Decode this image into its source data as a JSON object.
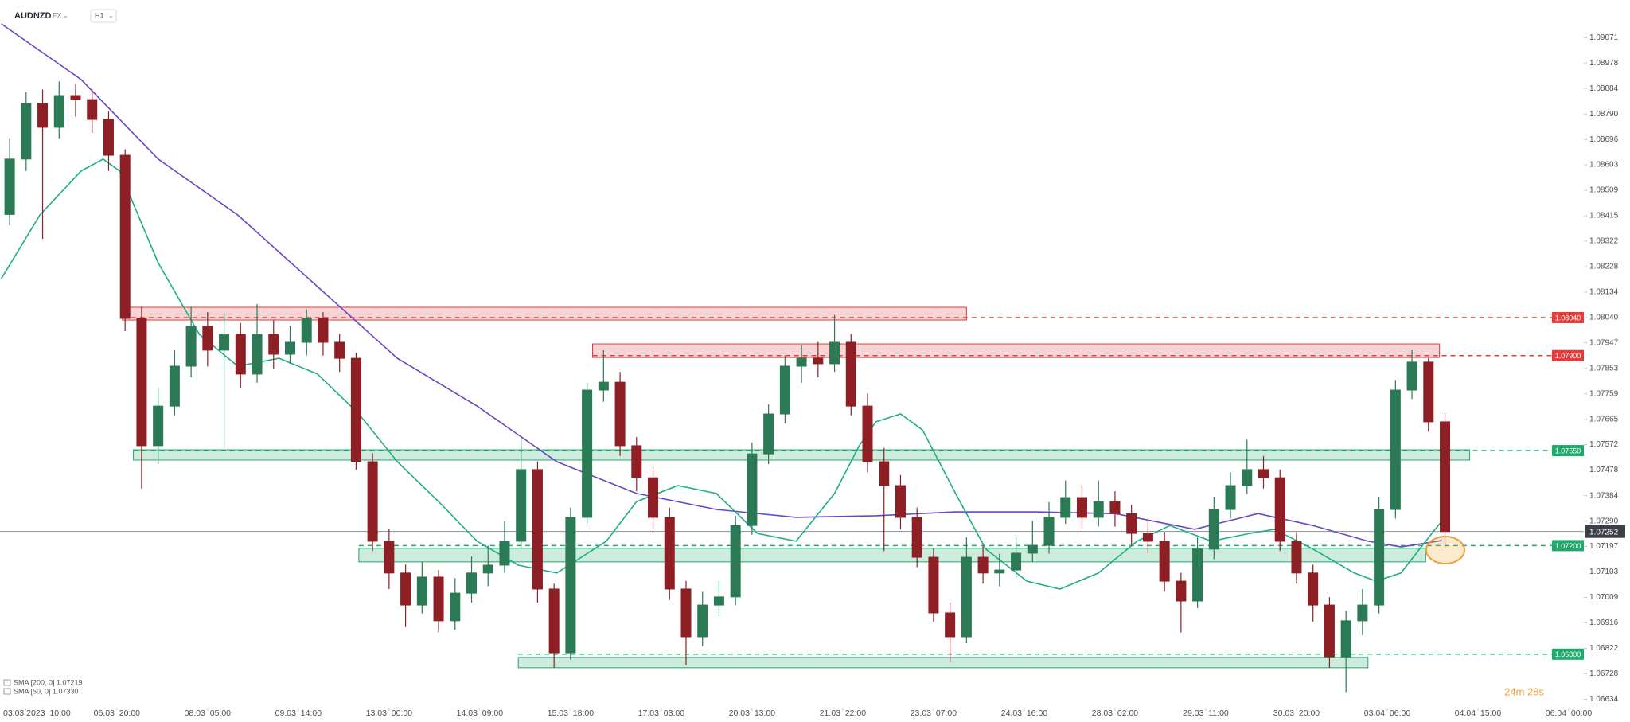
{
  "chart_data": {
    "type": "candlestick",
    "title": "AUDNZD",
    "market": "FX",
    "interval": "H1",
    "up_color": "#2b7a55",
    "down_color": "#8e1f24",
    "x": [
      -6,
      0,
      6,
      12,
      18,
      24,
      30,
      36,
      42,
      48,
      54,
      60,
      66,
      72,
      78,
      84,
      90,
      96,
      102,
      108,
      114,
      120,
      126,
      132,
      138,
      144,
      150,
      156,
      162,
      168,
      174,
      180,
      186,
      192,
      198,
      204,
      210,
      216,
      222,
      228,
      234,
      240,
      246,
      252,
      258,
      264,
      270,
      276,
      282,
      288,
      294,
      300,
      306,
      312,
      318,
      324,
      330,
      336,
      342,
      348,
      354,
      360,
      366,
      372,
      378,
      384,
      390,
      396,
      402,
      408,
      414,
      420,
      426,
      432,
      438,
      444,
      450,
      456,
      462,
      468,
      474,
      480,
      486,
      492,
      498,
      504,
      510,
      516
    ],
    "open": [
      1.0842,
      1.08624,
      1.08829,
      1.08741,
      1.08858,
      1.08843,
      1.0877,
      1.08638,
      1.08037,
      1.07568,
      1.07714,
      1.07861,
      1.08008,
      1.0792,
      1.07978,
      1.07832,
      1.07978,
      1.07905,
      1.07949,
      1.08037,
      1.07949,
      1.0789,
      1.07509,
      1.07216,
      1.07099,
      1.06981,
      1.07084,
      1.06923,
      1.07025,
      1.07099,
      1.07128,
      1.07216,
      1.0748,
      1.0704,
      1.06805,
      1.07304,
      1.07773,
      1.07802,
      1.07568,
      1.0745,
      1.07304,
      1.0704,
      1.06864,
      1.06981,
      1.07011,
      1.07274,
      1.07538,
      1.07685,
      1.07861,
      1.0789,
      1.0787,
      1.07949,
      1.07714,
      1.07509,
      1.07421,
      1.07304,
      1.07157,
      1.06952,
      1.06864,
      1.07157,
      1.07099,
      1.0711,
      1.07172,
      1.07201,
      1.07304,
      1.07377,
      1.07304,
      1.07362,
      1.07318,
      1.07245,
      1.07216,
      1.07069,
      1.06996,
      1.07187,
      1.07333,
      1.07421,
      1.0748,
      1.0745,
      1.07216,
      1.07099,
      1.06981,
      1.06791,
      1.06923,
      1.06981,
      1.07333,
      1.07773,
      1.07876,
      1.07656
    ],
    "high": [
      1.087,
      1.0887,
      1.0888,
      1.0891,
      1.089,
      1.0888,
      1.088,
      1.0866,
      1.0808,
      1.0778,
      1.0792,
      1.0808,
      1.0806,
      1.0806,
      1.0802,
      1.0809,
      1.0803,
      1.0801,
      1.0807,
      1.0806,
      1.0798,
      1.0791,
      1.0754,
      1.0726,
      1.0713,
      1.0714,
      1.0711,
      1.0708,
      1.0716,
      1.072,
      1.0729,
      1.076,
      1.0751,
      1.0706,
      1.0734,
      1.078,
      1.0792,
      1.0784,
      1.076,
      1.0749,
      1.0734,
      1.0707,
      1.0703,
      1.0707,
      1.0731,
      1.0758,
      1.0772,
      1.079,
      1.0794,
      1.0795,
      1.0805,
      1.0798,
      1.0776,
      1.0756,
      1.0746,
      1.0734,
      1.0719,
      1.0699,
      1.0723,
      1.072,
      1.0717,
      1.0723,
      1.0729,
      1.0736,
      1.0744,
      1.0742,
      1.0744,
      1.074,
      1.0735,
      1.0729,
      1.0725,
      1.071,
      1.0723,
      1.0738,
      1.0747,
      1.0759,
      1.0753,
      1.0748,
      1.0725,
      1.0713,
      1.0701,
      1.0696,
      1.0704,
      1.0738,
      1.0781,
      1.0792,
      1.0789,
      1.0769
    ],
    "low": [
      1.0838,
      1.0858,
      1.0833,
      1.087,
      1.0878,
      1.0872,
      1.0858,
      1.0799,
      1.0741,
      1.075,
      1.0768,
      1.0782,
      1.0786,
      1.0756,
      1.0778,
      1.078,
      1.0785,
      1.0787,
      1.079,
      1.079,
      1.0784,
      1.0748,
      1.0718,
      1.0704,
      1.069,
      1.0695,
      1.0688,
      1.0689,
      1.0699,
      1.0705,
      1.071,
      1.0719,
      1.0699,
      1.0675,
      1.0678,
      1.0728,
      1.0773,
      1.0753,
      1.074,
      1.0726,
      1.07,
      1.0676,
      1.0683,
      1.0694,
      1.0698,
      1.0724,
      1.075,
      1.0765,
      1.078,
      1.0782,
      1.0784,
      1.0768,
      1.0747,
      1.0718,
      1.0726,
      1.0712,
      1.0692,
      1.0677,
      1.0684,
      1.0706,
      1.0705,
      1.0708,
      1.0714,
      1.0717,
      1.0728,
      1.0726,
      1.0727,
      1.0727,
      1.072,
      1.0717,
      1.0703,
      1.0688,
      1.0697,
      1.0715,
      1.073,
      1.0739,
      1.0741,
      1.0718,
      1.0706,
      1.0692,
      1.0675,
      1.0666,
      1.0687,
      1.0695,
      1.073,
      1.0774,
      1.0762,
      1.0719
    ],
    "close": [
      1.08624,
      1.08829,
      1.08741,
      1.08858,
      1.08843,
      1.0877,
      1.08638,
      1.08037,
      1.07568,
      1.07714,
      1.07861,
      1.08008,
      1.0792,
      1.07978,
      1.07832,
      1.07978,
      1.07905,
      1.07949,
      1.08037,
      1.07949,
      1.0789,
      1.07509,
      1.07216,
      1.07099,
      1.06981,
      1.07084,
      1.06923,
      1.07025,
      1.07099,
      1.07128,
      1.07216,
      1.0748,
      1.0704,
      1.06805,
      1.07304,
      1.07773,
      1.07802,
      1.07568,
      1.0745,
      1.07304,
      1.0704,
      1.06864,
      1.06981,
      1.07011,
      1.07274,
      1.07538,
      1.07685,
      1.07861,
      1.0789,
      1.0787,
      1.07949,
      1.07714,
      1.07509,
      1.07421,
      1.07304,
      1.07157,
      1.06952,
      1.06864,
      1.07157,
      1.07099,
      1.0711,
      1.07172,
      1.07201,
      1.07304,
      1.07377,
      1.07304,
      1.07362,
      1.07318,
      1.07245,
      1.07216,
      1.07069,
      1.06996,
      1.07187,
      1.07333,
      1.07421,
      1.0748,
      1.0745,
      1.07216,
      1.07099,
      1.06981,
      1.06791,
      1.06923,
      1.06981,
      1.07333,
      1.07773,
      1.07876,
      1.07656,
      1.07252
    ],
    "sma": [
      {
        "name": "SMA [200, 0] 1.07219",
        "color": "#6b45c6",
        "x": [
          -9,
          20,
          48,
          77,
          106,
          135,
          164,
          193,
          222,
          251,
          280,
          309,
          338,
          367,
          396,
          425,
          448,
          468,
          488,
          500,
          515
        ],
        "values": [
          1.09122,
          1.08917,
          1.08624,
          1.08418,
          1.08154,
          1.0789,
          1.07714,
          1.07509,
          1.07392,
          1.07333,
          1.07304,
          1.0731,
          1.07324,
          1.07324,
          1.07318,
          1.0726,
          1.07318,
          1.07274,
          1.07216,
          1.07195,
          1.07219
        ]
      },
      {
        "name": "SMA [50, 0] 1.07330",
        "color": "#1fae84",
        "x": [
          -9,
          5,
          20,
          28,
          34,
          48,
          63,
          77,
          92,
          106,
          121,
          135,
          150,
          164,
          179,
          193,
          211,
          222,
          237,
          251,
          266,
          280,
          294,
          303,
          309,
          318,
          326,
          338,
          349,
          364,
          376,
          390,
          404,
          416,
          431,
          445,
          454,
          468,
          483,
          491,
          500,
          509,
          517
        ],
        "values": [
          1.08184,
          1.08418,
          1.0858,
          1.08624,
          1.0858,
          1.08242,
          1.07978,
          1.07861,
          1.0789,
          1.07832,
          1.07685,
          1.07509,
          1.07362,
          1.07216,
          1.07128,
          1.07099,
          1.07216,
          1.07362,
          1.07421,
          1.07392,
          1.07245,
          1.07216,
          1.07392,
          1.07568,
          1.07656,
          1.07685,
          1.07626,
          1.07392,
          1.07187,
          1.07069,
          1.0704,
          1.07099,
          1.07216,
          1.07274,
          1.07216,
          1.07245,
          1.0726,
          1.07187,
          1.07099,
          1.07069,
          1.07099,
          1.07216,
          1.07318
        ]
      }
    ],
    "levels": [
      {
        "value": 1.0804,
        "label": "1.08040",
        "color": "#e23c3c",
        "zone": [
          1.08031,
          1.08078
        ],
        "zone_x": [
          35,
          342
        ]
      },
      {
        "value": 1.079,
        "label": "1.07900",
        "color": "#e23c3c",
        "zone": [
          1.07893,
          1.07943
        ],
        "zone_x": [
          206,
          514
        ]
      },
      {
        "value": 1.0755,
        "label": "1.07550",
        "color": "#1faa6b",
        "zone": [
          1.07515,
          1.07553
        ],
        "zone_x": [
          39,
          525
        ]
      },
      {
        "value": 1.072,
        "label": "1.07200",
        "color": "#1faa6b",
        "zone": [
          1.0714,
          1.0719
        ],
        "zone_x": [
          121,
          509
        ]
      },
      {
        "value": 1.068,
        "label": "1.06800",
        "color": "#1faa6b",
        "zone": [
          1.0675,
          1.06788
        ],
        "zone_x": [
          179,
          488
        ]
      }
    ],
    "current_price": 1.07252,
    "timer": "24m 28s",
    "xlim": [
      -9.5,
      566.5
    ],
    "ylim": [
      1.066,
      1.0921
    ],
    "xticks": [
      {
        "value": 0,
        "label": "03.03.2023  10:00"
      },
      {
        "value": 33,
        "label": "06.03  20:00"
      },
      {
        "value": 66,
        "label": "08.03  05:00"
      },
      {
        "value": 99,
        "label": "09.03  14:00"
      },
      {
        "value": 132,
        "label": "13.03  00:00"
      },
      {
        "value": 165,
        "label": "14.03  09:00"
      },
      {
        "value": 198,
        "label": "15.03  18:00"
      },
      {
        "value": 231,
        "label": "17.03  03:00"
      },
      {
        "value": 264,
        "label": "20.03  13:00"
      },
      {
        "value": 297,
        "label": "21.03  22:00"
      },
      {
        "value": 330,
        "label": "23.03  07:00"
      },
      {
        "value": 363,
        "label": "24.03  16:00"
      },
      {
        "value": 396,
        "label": "28.03  02:00"
      },
      {
        "value": 429,
        "label": "29.03  11:00"
      },
      {
        "value": 462,
        "label": "30.03  20:00"
      },
      {
        "value": 495,
        "label": "03.04  06:00"
      },
      {
        "value": 528,
        "label": "04.04  15:00"
      },
      {
        "value": 561,
        "label": "06.04  00:00"
      }
    ],
    "yticks": [
      1.09071,
      1.08978,
      1.08884,
      {
        "value": 1.0879,
        "label": "1.08790"
      },
      1.08696,
      1.08603,
      1.08509,
      1.08415,
      1.08322,
      1.08228,
      1.08134,
      {
        "value": 1.0804,
        "label": "1.08040"
      },
      1.07947,
      1.07853,
      1.07759,
      1.07665,
      1.07572,
      1.07478,
      1.07384,
      {
        "value": 1.0729,
        "label": "1.07290"
      },
      1.07197,
      1.07103,
      1.07009,
      1.06916,
      1.06822,
      1.06728,
      1.06634
    ]
  }
}
